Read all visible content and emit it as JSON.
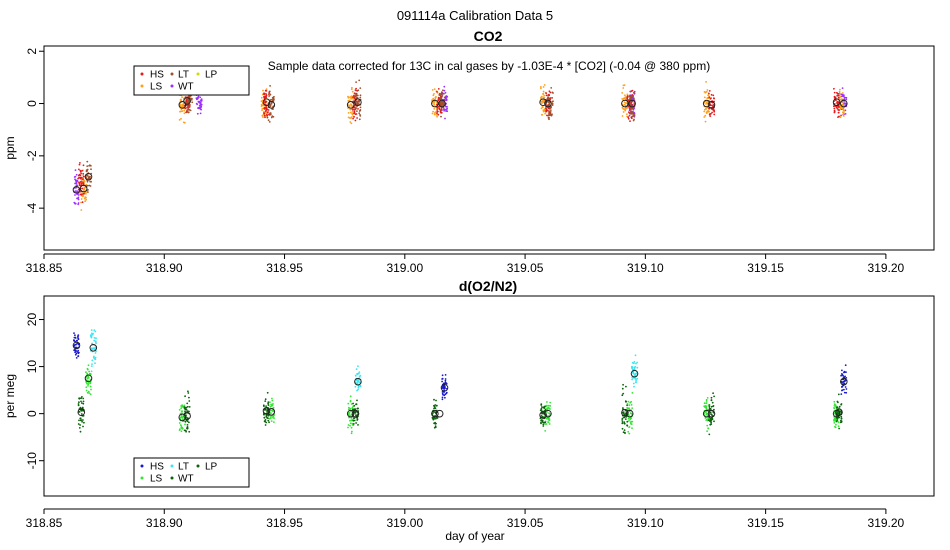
{
  "figure_title": "091114a   Calibration Data 5",
  "xlabel": "day of year",
  "colors": {
    "HS": "#e41a1c",
    "LS": "#ff9f1a",
    "LT": "#a0522d",
    "WT": "#9b30ff",
    "LP": "#d7d700",
    "HS2": "#1a1acd",
    "LS2": "#32e632",
    "LT2": "#3ce6f0",
    "WT2": "#0a640a",
    "LP2": "#0a640a"
  },
  "chart_data": [
    {
      "type": "scatter",
      "title": "CO2",
      "ylabel": "ppm",
      "annotation": "Sample data corrected for 13C in cal gases by -1.03E-4 * [CO2] (-0.04 @ 380 ppm)",
      "xlim": [
        318.85,
        319.22
      ],
      "ylim": [
        -5.6,
        2.2
      ],
      "xticks": [
        318.85,
        318.9,
        318.95,
        319.0,
        319.05,
        319.1,
        319.15,
        319.2
      ],
      "xtick_labels": [
        "318.85",
        "318.90",
        "318.95",
        "319.00",
        "319.05",
        "319.10",
        "319.15",
        "319.20"
      ],
      "yticks": [
        -4,
        -2,
        0,
        2
      ],
      "ytick_labels": [
        "-4",
        "-2",
        "0",
        "2"
      ],
      "legend": {
        "placement": "top-left",
        "entries": [
          "HS",
          "LS",
          "LT",
          "WT",
          "LP"
        ]
      },
      "series": [
        {
          "name": "WT",
          "color": "#9b30ff",
          "x": [
            318.8635,
            318.9145,
            319.0165,
            319.0945,
            319.1825
          ],
          "y": [
            -3.3,
            0.05,
            0.0,
            0.0,
            0.0
          ],
          "spread": [
            0.6,
            0.35,
            0.5,
            0.4,
            0.5
          ]
        },
        {
          "name": "LS",
          "color": "#ff9f1a",
          "x": [
            318.8665,
            318.9075,
            318.9415,
            318.9775,
            319.0125,
            319.0575,
            319.0915,
            319.1255,
            319.1815
          ],
          "y": [
            -3.2,
            -0.1,
            0.0,
            -0.05,
            0.0,
            0.0,
            -0.05,
            0.0,
            0.0
          ],
          "spread": [
            0.7,
            0.45,
            0.55,
            0.6,
            0.45,
            0.55,
            0.55,
            0.6,
            0.5
          ]
        },
        {
          "name": "HS",
          "color": "#e41a1c",
          "x": [
            318.8655,
            318.9095,
            318.9425,
            318.9795,
            319.0145,
            319.0595,
            319.0935,
            319.1275,
            319.1795
          ],
          "y": [
            -3.0,
            0.1,
            0.0,
            0.0,
            0.0,
            0.0,
            0.0,
            -0.05,
            0.0
          ],
          "spread": [
            0.6,
            0.4,
            0.5,
            0.5,
            0.45,
            0.5,
            0.6,
            0.5,
            0.45
          ]
        },
        {
          "name": "LT",
          "color": "#a0522d",
          "x": [
            318.8685,
            318.9105,
            318.9445,
            318.9805,
            319.0155,
            319.0605,
            319.0945
          ],
          "y": [
            -2.8,
            0.05,
            -0.05,
            0.05,
            0.05,
            0.0,
            0.0
          ],
          "spread": [
            0.6,
            0.35,
            0.45,
            0.55,
            0.4,
            0.45,
            0.5
          ]
        }
      ],
      "mean_markers": {
        "x": [
          318.8635,
          318.8665,
          318.8685,
          318.9075,
          318.9095,
          318.9425,
          318.9445,
          318.9775,
          318.9805,
          319.0125,
          319.0155,
          319.0575,
          319.0595,
          319.0915,
          319.0945,
          319.1255,
          319.1275,
          319.1795,
          319.1825
        ],
        "y": [
          -3.3,
          -3.25,
          -2.8,
          -0.05,
          0.1,
          0.05,
          -0.05,
          -0.05,
          0.05,
          0.0,
          0.0,
          0.05,
          0.0,
          0.0,
          0.0,
          0.0,
          -0.05,
          0.05,
          0.0
        ]
      }
    },
    {
      "type": "scatter",
      "title": "d(O2/N2)",
      "ylabel": "per meg",
      "xlim": [
        318.85,
        319.22
      ],
      "ylim": [
        -17.5,
        25
      ],
      "xticks": [
        318.85,
        318.9,
        318.95,
        319.0,
        319.05,
        319.1,
        319.15,
        319.2
      ],
      "xtick_labels": [
        "318.85",
        "318.90",
        "318.95",
        "319.00",
        "319.05",
        "319.10",
        "319.15",
        "319.20"
      ],
      "yticks": [
        -10,
        0,
        10,
        20
      ],
      "ytick_labels": [
        "-10",
        "0",
        "10",
        "20"
      ],
      "legend": {
        "placement": "bottom-left",
        "entries": [
          "HS",
          "LS",
          "LT",
          "WT",
          "LP"
        ]
      },
      "series": [
        {
          "name": "HS",
          "color": "#1a1acd",
          "x": [
            318.8635,
            319.0165,
            319.1825
          ],
          "y": [
            14.5,
            5.5,
            6.5
          ],
          "spread": [
            2.5,
            2.5,
            2.8
          ]
        },
        {
          "name": "LT",
          "color": "#3ce6f0",
          "x": [
            318.8705,
            318.9805,
            319.0955
          ],
          "y": [
            14.0,
            7.0,
            8.5
          ],
          "spread": [
            3.5,
            2.0,
            2.5
          ]
        },
        {
          "name": "LS",
          "color": "#32e632",
          "x": [
            318.8685,
            318.9075,
            318.9445,
            318.9775,
            319.0595,
            319.0935,
            319.1255,
            319.1795
          ],
          "y": [
            7.5,
            -1.0,
            0.5,
            0.0,
            -0.5,
            0.0,
            0.0,
            0.0
          ],
          "spread": [
            2.5,
            3.0,
            2.5,
            3.0,
            3.0,
            3.5,
            3.0,
            3.0
          ]
        },
        {
          "name": "WT",
          "color": "#0a640a",
          "x": [
            318.8655,
            318.9095,
            318.9425,
            318.9795,
            319.0125,
            319.0575,
            319.0915,
            319.1275,
            319.1805
          ],
          "y": [
            0.5,
            -0.5,
            0.5,
            0.0,
            0.0,
            0.0,
            0.0,
            0.0,
            0.0
          ],
          "spread": [
            3.0,
            3.5,
            2.5,
            2.5,
            2.5,
            2.5,
            5.0,
            3.5,
            3.0
          ]
        }
      ],
      "mean_markers": {
        "x": [
          318.8635,
          318.8655,
          318.8685,
          318.8705,
          318.9075,
          318.9095,
          318.9425,
          318.9445,
          318.9775,
          318.9795,
          318.9805,
          319.0125,
          319.0145,
          319.0165,
          319.0575,
          319.0595,
          319.0915,
          319.0935,
          319.0955,
          319.1255,
          319.1275,
          319.1795,
          319.1805,
          319.1825
        ],
        "y": [
          14.5,
          0.3,
          7.5,
          14.0,
          -0.8,
          -0.5,
          0.6,
          0.4,
          0.0,
          0.0,
          6.8,
          0.0,
          0.0,
          5.5,
          -0.3,
          0.0,
          0.2,
          0.0,
          8.5,
          0.0,
          0.0,
          0.0,
          0.3,
          6.8
        ]
      }
    }
  ]
}
